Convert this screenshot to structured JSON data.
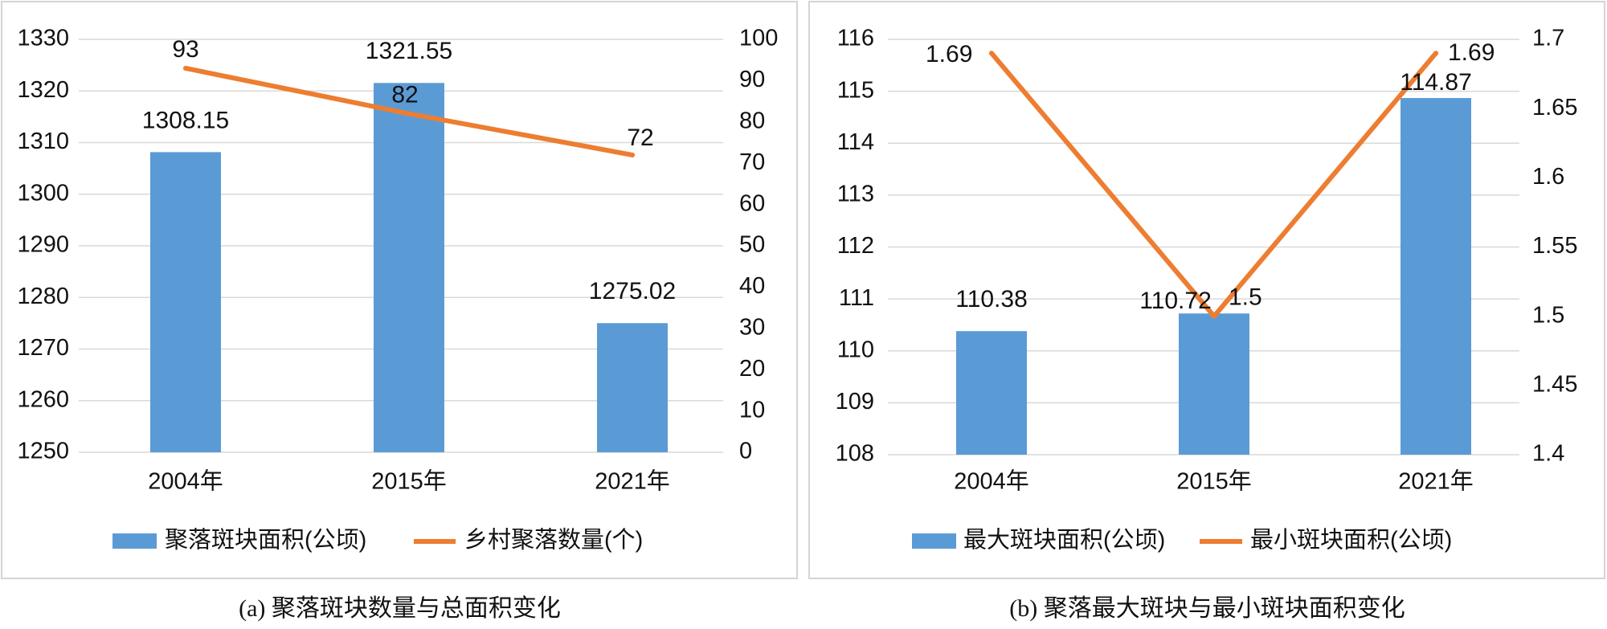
{
  "chart_data": [
    {
      "type": "bar",
      "caption": "(a) 聚落斑块数量与总面积变化",
      "categories": [
        "2004年",
        "2015年",
        "2021年"
      ],
      "series": [
        {
          "name": "聚落斑块面积(公顷)",
          "type": "bar",
          "axis": "left",
          "color": "#5B9BD5",
          "values": [
            1308.15,
            1321.55,
            1275.02
          ],
          "labels": [
            "1308.15",
            "1321.55",
            "1275.02"
          ]
        },
        {
          "name": "乡村聚落数量(个)",
          "type": "line",
          "axis": "right",
          "color": "#ED7D31",
          "values": [
            93,
            82,
            72
          ],
          "labels": [
            "93",
            "82",
            "72"
          ]
        }
      ],
      "y_left": {
        "min": 1250,
        "max": 1330,
        "ticks": [
          "1250",
          "1260",
          "1270",
          "1280",
          "1290",
          "1300",
          "1310",
          "1320",
          "1330"
        ]
      },
      "y_right": {
        "min": 0,
        "max": 100,
        "ticks": [
          "0",
          "10",
          "20",
          "30",
          "40",
          "50",
          "60",
          "70",
          "80",
          "90",
          "100"
        ]
      },
      "grid": true,
      "legend": "bottom"
    },
    {
      "type": "bar",
      "caption": "(b) 聚落最大斑块与最小斑块面积变化",
      "categories": [
        "2004年",
        "2015年",
        "2021年"
      ],
      "series": [
        {
          "name": "最大斑块面积(公顷)",
          "type": "bar",
          "axis": "left",
          "color": "#5B9BD5",
          "values": [
            110.38,
            110.72,
            114.87
          ],
          "labels": [
            "110.38",
            "110.72",
            "114.87"
          ]
        },
        {
          "name": "最小斑块面积(公顷)",
          "type": "line",
          "axis": "right",
          "color": "#ED7D31",
          "values": [
            1.69,
            1.5,
            1.69
          ],
          "labels": [
            "1.69",
            "1.5",
            "1.69"
          ]
        }
      ],
      "y_left": {
        "min": 108,
        "max": 116,
        "ticks": [
          "108",
          "109",
          "110",
          "111",
          "112",
          "113",
          "114",
          "115",
          "116"
        ]
      },
      "y_right": {
        "min": 1.4,
        "max": 1.7,
        "ticks": [
          "1.4",
          "1.45",
          "1.5",
          "1.55",
          "1.6",
          "1.65",
          "1.7"
        ]
      },
      "grid": true,
      "legend": "bottom"
    }
  ]
}
